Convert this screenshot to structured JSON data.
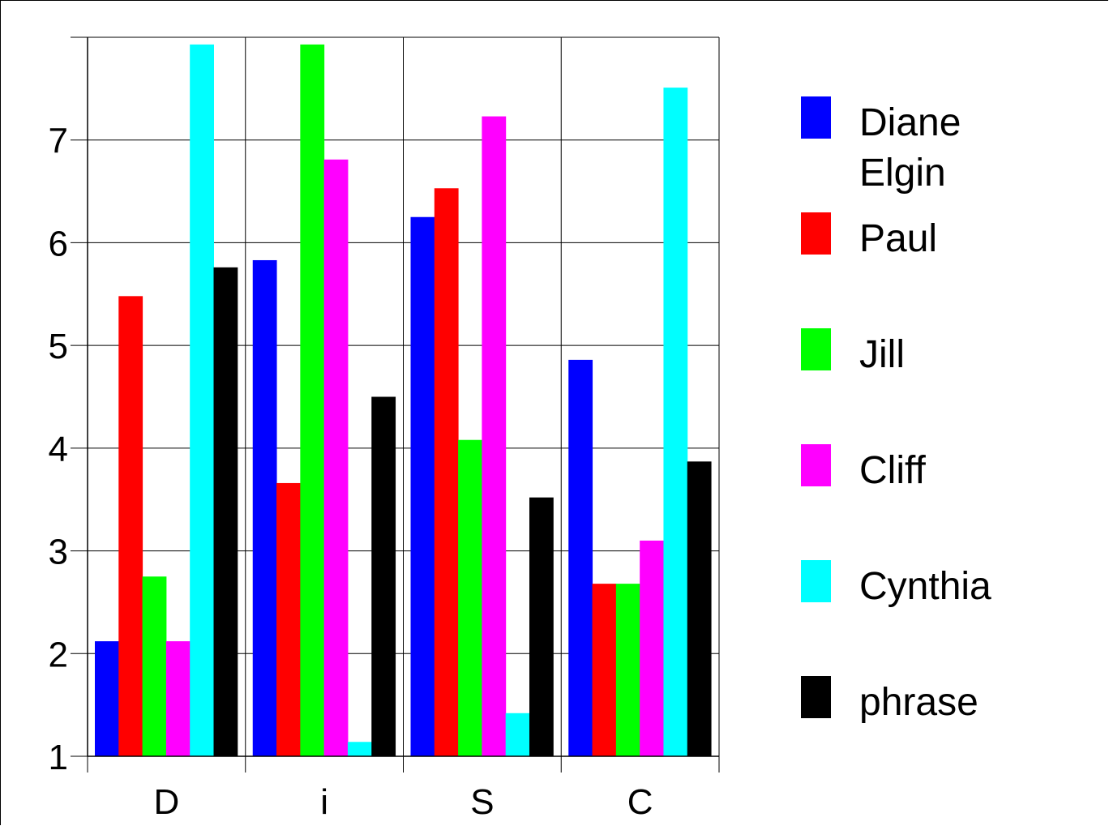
{
  "chart_data": {
    "type": "bar",
    "title": "",
    "xlabel": "",
    "ylabel": "",
    "categories": [
      "D",
      "i",
      "S",
      "C"
    ],
    "ylim": [
      1,
      8
    ],
    "yticks": [
      "1",
      "2",
      "3",
      "4",
      "5",
      "6",
      "7"
    ],
    "grid": true,
    "legend_position": "right",
    "series": [
      {
        "name_lines": [
          "Diane",
          "Elgin"
        ],
        "color": "#0000ff",
        "values": [
          2.12,
          5.83,
          6.25,
          4.86
        ]
      },
      {
        "name_lines": [
          "Paul"
        ],
        "color": "#ff0000",
        "values": [
          5.48,
          3.66,
          6.53,
          2.68
        ]
      },
      {
        "name_lines": [
          "Jill"
        ],
        "color": "#00ff00",
        "values": [
          2.75,
          7.93,
          4.08,
          2.68
        ]
      },
      {
        "name_lines": [
          "Cliff"
        ],
        "color": "#ff00ff",
        "values": [
          2.12,
          6.81,
          7.23,
          3.1
        ]
      },
      {
        "name_lines": [
          "Cynthia"
        ],
        "color": "#00ffff",
        "values": [
          7.93,
          1.14,
          1.42,
          7.51
        ]
      },
      {
        "name_lines": [
          "phrase"
        ],
        "color": "#000000",
        "values": [
          5.76,
          4.5,
          3.52,
          3.87
        ]
      }
    ]
  }
}
